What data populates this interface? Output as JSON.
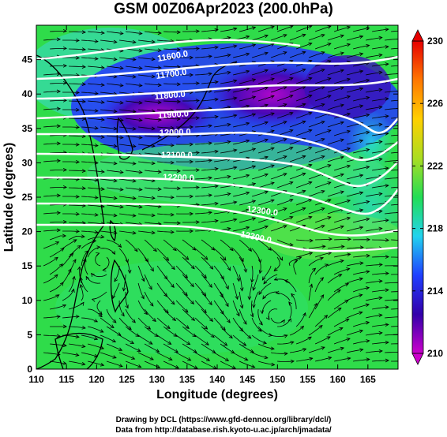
{
  "title": "GSM 00Z06Apr2023 (200.0hPa)",
  "xlabel": "Longitude (degrees)",
  "ylabel": "Latitude  (degrees)",
  "credits": [
    "Drawing by DCL (https://www.gfd-dennou.org/library/dcl/)",
    "Data from http://database.rish.kyoto-u.ac.jp/arch/jmadata/"
  ],
  "chart_data": {
    "type": "heatmap",
    "subtype": "weather map: shaded temperature with wind streamlines and white height contours",
    "xlim": [
      110,
      170
    ],
    "ylim": [
      0,
      50
    ],
    "x_ticks": [
      110,
      115,
      120,
      125,
      130,
      135,
      140,
      145,
      150,
      155,
      160,
      165
    ],
    "y_ticks": [
      0,
      5,
      10,
      15,
      20,
      25,
      30,
      35,
      40,
      45
    ],
    "grid": false,
    "colorbar": {
      "range": [
        210,
        230
      ],
      "ticks": [
        210,
        214,
        218,
        222,
        226,
        230
      ],
      "colors": [
        "#cc00cc",
        "#3300aa",
        "#1f3fff",
        "#22d3ee",
        "#22dd55",
        "#aadd22",
        "#ffd000",
        "#ff7700",
        "#e60000"
      ],
      "extend": "both"
    },
    "contour_labels": [
      "11600.0",
      "11700.0",
      "11800.0",
      "11900.0",
      "12000.0",
      "12100.0",
      "12200.0",
      "12300.0",
      "12300.0"
    ],
    "contour_color": "#ffffff"
  }
}
